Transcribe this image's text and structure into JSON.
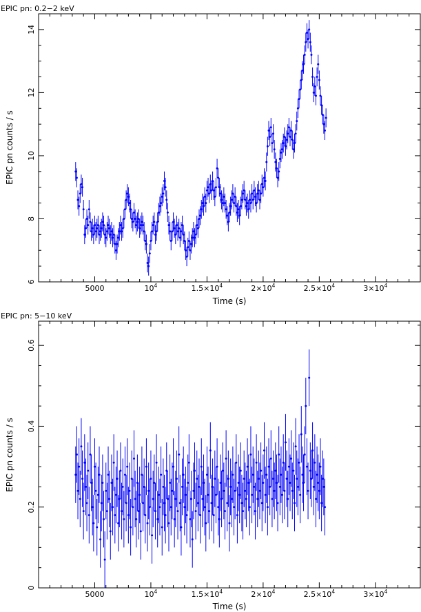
{
  "chart_data": [
    {
      "type": "scatter",
      "title": "EPIC pn: 0.2−2 keV",
      "xlabel": "Time (s)",
      "ylabel": "EPIC pn counts / s",
      "xlim": [
        0,
        34000
      ],
      "ylim": [
        6,
        14.5
      ],
      "xticks": [
        {
          "value": 5000,
          "base": "5000",
          "exp": ""
        },
        {
          "value": 10000,
          "base": "10",
          "exp": "4"
        },
        {
          "value": 15000,
          "base": "1.5×10",
          "exp": "4"
        },
        {
          "value": 20000,
          "base": "2×10",
          "exp": "4"
        },
        {
          "value": 25000,
          "base": "2.5×10",
          "exp": "4"
        },
        {
          "value": 30000,
          "base": "3×10",
          "exp": "4"
        }
      ],
      "yticks": [
        {
          "value": 6,
          "label": "6"
        },
        {
          "value": 8,
          "label": "8"
        },
        {
          "value": 10,
          "label": "10"
        },
        {
          "value": 12,
          "label": "12"
        },
        {
          "value": 14,
          "label": "14"
        }
      ],
      "series": [
        {
          "color": "#0000ff",
          "t_start": 3300,
          "t_step": 100,
          "values": [
            9.5,
            9.3,
            8.6,
            8.4,
            8.8,
            9.1,
            9.0,
            8.3,
            7.5,
            7.7,
            8.0,
            7.8,
            8.3,
            7.9,
            7.6,
            7.7,
            7.5,
            7.8,
            7.6,
            7.7,
            7.8,
            7.5,
            7.6,
            7.7,
            7.9,
            7.8,
            7.5,
            7.4,
            7.6,
            7.8,
            7.7,
            7.5,
            7.6,
            7.4,
            7.5,
            7.2,
            7.0,
            7.2,
            7.4,
            7.6,
            7.8,
            7.6,
            7.7,
            8.0,
            8.3,
            8.6,
            8.8,
            8.7,
            8.5,
            8.3,
            8.0,
            7.9,
            8.2,
            8.0,
            7.8,
            7.9,
            8.0,
            7.7,
            7.8,
            7.9,
            7.8,
            7.6,
            7.3,
            7.2,
            6.6,
            6.5,
            6.9,
            7.3,
            7.6,
            7.8,
            7.9,
            7.5,
            7.6,
            7.9,
            8.2,
            8.4,
            8.5,
            8.7,
            8.8,
            9.2,
            9.0,
            8.6,
            8.2,
            7.8,
            7.6,
            7.3,
            7.6,
            7.9,
            7.7,
            7.5,
            7.8,
            7.6,
            7.7,
            7.4,
            7.6,
            7.8,
            7.5,
            7.3,
            7.0,
            6.8,
            7.1,
            7.3,
            7.0,
            7.2,
            7.4,
            7.6,
            7.4,
            7.5,
            7.8,
            7.7,
            8.0,
            8.1,
            8.3,
            8.5,
            8.4,
            8.7,
            8.5,
            8.9,
            9.0,
            8.8,
            9.1,
            8.9,
            9.2,
            8.9,
            8.7,
            9.0,
            9.6,
            9.3,
            9.0,
            8.8,
            8.6,
            8.5,
            8.7,
            8.5,
            8.3,
            8.1,
            7.9,
            8.2,
            8.4,
            8.6,
            8.8,
            8.5,
            8.7,
            8.4,
            8.2,
            8.3,
            8.1,
            8.4,
            8.6,
            8.8,
            8.9,
            8.6,
            8.4,
            8.5,
            8.3,
            8.6,
            8.5,
            8.8,
            8.6,
            8.9,
            8.7,
            8.5,
            8.8,
            8.9,
            8.6,
            8.8,
            9.1,
            9.0,
            9.3,
            9.2,
            9.8,
            10.3,
            10.8,
            10.6,
            10.9,
            10.4,
            10.7,
            10.2,
            9.8,
            9.6,
            9.3,
            9.5,
            9.9,
            10.1,
            10.2,
            10.4,
            10.6,
            10.3,
            10.5,
            10.7,
            10.9,
            10.6,
            10.8,
            10.5,
            10.2,
            10.4,
            10.7,
            11.1,
            11.5,
            11.8,
            12.1,
            12.4,
            12.7,
            12.9,
            13.2,
            13.6,
            13.9,
            13.7,
            14.0,
            13.6,
            13.2,
            12.5,
            12.0,
            12.2,
            11.9,
            12.5,
            12.9,
            12.4,
            11.9,
            11.6,
            11.3,
            11.0,
            10.8,
            11.2
          ],
          "error": 0.3
        }
      ]
    },
    {
      "type": "scatter",
      "title": "EPIC pn: 5−10 keV",
      "xlabel": "Time (s)",
      "ylabel": "EPIC pn counts / s",
      "xlim": [
        0,
        34000
      ],
      "ylim": [
        0,
        0.66
      ],
      "xticks": [
        {
          "value": 5000,
          "base": "5000",
          "exp": ""
        },
        {
          "value": 10000,
          "base": "10",
          "exp": "4"
        },
        {
          "value": 15000,
          "base": "1.5×10",
          "exp": "4"
        },
        {
          "value": 20000,
          "base": "2×10",
          "exp": "4"
        },
        {
          "value": 25000,
          "base": "2.5×10",
          "exp": "4"
        },
        {
          "value": 30000,
          "base": "3×10",
          "exp": "4"
        }
      ],
      "yticks": [
        {
          "value": 0,
          "label": "0"
        },
        {
          "value": 0.2,
          "label": "0.2"
        },
        {
          "value": 0.4,
          "label": "0.4"
        },
        {
          "value": 0.6,
          "label": "0.6"
        }
      ],
      "series": [
        {
          "color": "#0000ff",
          "t_start": 3300,
          "t_step": 100,
          "values": [
            0.28,
            0.33,
            0.24,
            0.3,
            0.22,
            0.35,
            0.27,
            0.19,
            0.31,
            0.25,
            0.21,
            0.29,
            0.18,
            0.33,
            0.26,
            0.2,
            0.16,
            0.3,
            0.24,
            0.15,
            0.23,
            0.28,
            0.12,
            0.21,
            0.26,
            0.17,
            0.07,
            0.24,
            0.19,
            0.28,
            0.22,
            0.14,
            0.26,
            0.2,
            0.31,
            0.18,
            0.23,
            0.27,
            0.16,
            0.22,
            0.29,
            0.19,
            0.25,
            0.17,
            0.28,
            0.21,
            0.3,
            0.18,
            0.24,
            0.15,
            0.27,
            0.2,
            0.32,
            0.22,
            0.17,
            0.26,
            0.19,
            0.23,
            0.14,
            0.28,
            0.21,
            0.25,
            0.18,
            0.3,
            0.16,
            0.24,
            0.2,
            0.27,
            0.13,
            0.22,
            0.26,
            0.19,
            0.31,
            0.17,
            0.23,
            0.2,
            0.28,
            0.15,
            0.25,
            0.21,
            0.18,
            0.29,
            0.22,
            0.16,
            0.26,
            0.2,
            0.24,
            0.3,
            0.17,
            0.22,
            0.27,
            0.19,
            0.33,
            0.21,
            0.15,
            0.25,
            0.28,
            0.2,
            0.23,
            0.18,
            0.26,
            0.31,
            0.17,
            0.22,
            0.12,
            0.24,
            0.29,
            0.19,
            0.27,
            0.21,
            0.25,
            0.18,
            0.3,
            0.22,
            0.26,
            0.2,
            0.16,
            0.28,
            0.23,
            0.19,
            0.34,
            0.21,
            0.25,
            0.18,
            0.27,
            0.23,
            0.3,
            0.2,
            0.17,
            0.26,
            0.22,
            0.29,
            0.24,
            0.19,
            0.32,
            0.21,
            0.27,
            0.16,
            0.25,
            0.22,
            0.28,
            0.2,
            0.24,
            0.31,
            0.18,
            0.26,
            0.23,
            0.29,
            0.21,
            0.19,
            0.27,
            0.24,
            0.22,
            0.3,
            0.26,
            0.2,
            0.33,
            0.23,
            0.28,
            0.25,
            0.19,
            0.31,
            0.22,
            0.27,
            0.24,
            0.29,
            0.21,
            0.26,
            0.34,
            0.23,
            0.28,
            0.2,
            0.3,
            0.25,
            0.32,
            0.22,
            0.27,
            0.24,
            0.29,
            0.26,
            0.21,
            0.33,
            0.25,
            0.28,
            0.23,
            0.31,
            0.24,
            0.36,
            0.27,
            0.22,
            0.3,
            0.26,
            0.32,
            0.24,
            0.29,
            0.21,
            0.35,
            0.27,
            0.25,
            0.31,
            0.23,
            0.38,
            0.28,
            0.26,
            0.33,
            0.45,
            0.3,
            0.24,
            0.52,
            0.29,
            0.27,
            0.34,
            0.25,
            0.31,
            0.22,
            0.28,
            0.26,
            0.24,
            0.3,
            0.21,
            0.27,
            0.25,
            0.2
          ],
          "error": 0.07
        }
      ]
    }
  ]
}
